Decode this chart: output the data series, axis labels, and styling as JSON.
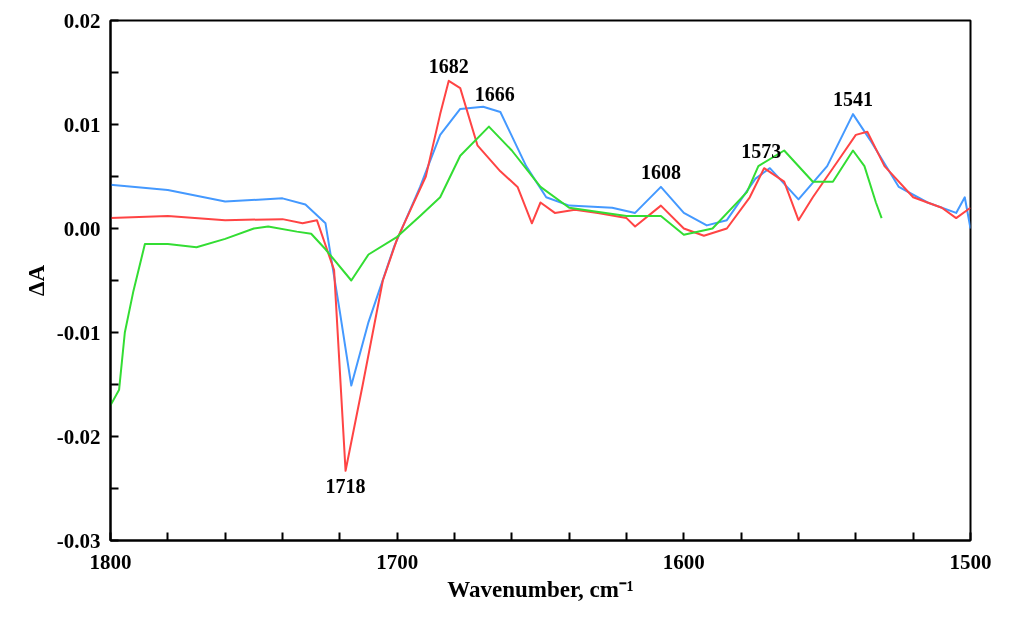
{
  "chart_data": {
    "type": "line",
    "xlabel": "Wavenumber, cm⁻¹",
    "ylabel": "ΔA",
    "xlim": [
      1800,
      1500
    ],
    "ylim": [
      -0.03,
      0.02
    ],
    "xticks": [
      1800,
      {
        "value": 1780,
        "label": null
      },
      {
        "value": 1760,
        "label": null
      },
      {
        "value": 1740,
        "label": null
      },
      {
        "value": 1720,
        "label": null
      },
      1700,
      {
        "value": 1680,
        "label": null
      },
      {
        "value": 1660,
        "label": null
      },
      {
        "value": 1640,
        "label": null
      },
      {
        "value": 1620,
        "label": null
      },
      1600,
      {
        "value": 1580,
        "label": null
      },
      {
        "value": 1560,
        "label": null
      },
      {
        "value": 1540,
        "label": null
      },
      {
        "value": 1520,
        "label": null
      },
      1500
    ],
    "yticks": [
      {
        "value": -0.03,
        "label": "-0.03"
      },
      {
        "value": -0.025,
        "label": null
      },
      {
        "value": -0.02,
        "label": "-0.02"
      },
      {
        "value": -0.015,
        "label": null
      },
      {
        "value": -0.01,
        "label": "-0.01"
      },
      {
        "value": -0.005,
        "label": null
      },
      {
        "value": 0,
        "label": "0.00"
      },
      {
        "value": 0.005,
        "label": null
      },
      {
        "value": 0.01,
        "label": "0.01"
      },
      {
        "value": 0.015,
        "label": null
      },
      {
        "value": 0.02,
        "label": "0.02"
      }
    ],
    "grid": false,
    "marker": "none",
    "line_style": "solid",
    "annotations": [
      {
        "text": "1718",
        "x": 1718,
        "y": -0.0233
      },
      {
        "text": "1682",
        "x": 1682,
        "y": 0.0142
      },
      {
        "text": "1666",
        "x": 1666,
        "y": 0.0115
      },
      {
        "text": "1608",
        "x": 1608,
        "y": 0.004
      },
      {
        "text": "1573",
        "x": 1573,
        "y": 0.006
      },
      {
        "text": "1541",
        "x": 1541,
        "y": 0.011
      }
    ],
    "series": [
      {
        "color": "#4499ff",
        "x": [
          1800,
          1780,
          1760,
          1740,
          1732,
          1725,
          1720,
          1716,
          1710,
          1701,
          1692,
          1685,
          1678,
          1670,
          1664,
          1655,
          1648,
          1640,
          1625,
          1617,
          1608,
          1600,
          1592,
          1585,
          1575,
          1570,
          1560,
          1550,
          1541,
          1535,
          1525,
          1515,
          1505,
          1502,
          1500
        ],
        "values": [
          0.0042,
          0.0037,
          0.0026,
          0.0029,
          0.0023,
          0.0005,
          -0.008,
          -0.0151,
          -0.009,
          -0.0017,
          0.004,
          0.009,
          0.0115,
          0.0117,
          0.0112,
          0.006,
          0.003,
          0.0022,
          0.002,
          0.0015,
          0.004,
          0.0015,
          0.0003,
          0.0008,
          0.0048,
          0.0058,
          0.0028,
          0.006,
          0.011,
          0.0085,
          0.004,
          0.0025,
          0.0015,
          0.003,
          0.0
        ]
      },
      {
        "color": "#ff4444",
        "x": [
          1800,
          1780,
          1760,
          1740,
          1733,
          1728,
          1722,
          1718,
          1712,
          1705,
          1700,
          1695,
          1690,
          1685,
          1682,
          1678,
          1672,
          1664,
          1658,
          1653,
          1650,
          1645,
          1638,
          1630,
          1620,
          1617,
          1608,
          1600,
          1593,
          1585,
          1577,
          1572,
          1565,
          1560,
          1555,
          1545,
          1540,
          1536,
          1530,
          1520,
          1510,
          1505,
          1500
        ],
        "values": [
          0.001,
          0.0012,
          0.0008,
          0.0009,
          0.0005,
          0.0008,
          -0.004,
          -0.0233,
          -0.015,
          -0.005,
          -0.001,
          0.002,
          0.005,
          0.011,
          0.0142,
          0.0135,
          0.008,
          0.0055,
          0.004,
          0.0005,
          0.0025,
          0.0015,
          0.0018,
          0.0015,
          0.001,
          0.0002,
          0.0022,
          0.0,
          -0.0007,
          0.0,
          0.003,
          0.0058,
          0.0045,
          0.0008,
          0.003,
          0.007,
          0.009,
          0.0093,
          0.006,
          0.003,
          0.002,
          0.001,
          0.002
        ]
      },
      {
        "color": "#33dd33",
        "x": [
          1800,
          1797,
          1795,
          1792,
          1788,
          1780,
          1770,
          1760,
          1750,
          1745,
          1735,
          1730,
          1725,
          1716,
          1710,
          1700,
          1692,
          1685,
          1678,
          1668,
          1660,
          1650,
          1640,
          1620,
          1608,
          1600,
          1590,
          1578,
          1574,
          1565,
          1555,
          1548,
          1541,
          1537,
          1533,
          1531
        ],
        "values": [
          -0.017,
          -0.0155,
          -0.01,
          -0.006,
          -0.0015,
          -0.0015,
          -0.0018,
          -0.001,
          0.0,
          0.0002,
          -0.0003,
          -0.0005,
          -0.002,
          -0.005,
          -0.0025,
          -0.0008,
          0.0012,
          0.003,
          0.007,
          0.0098,
          0.0075,
          0.004,
          0.002,
          0.0012,
          0.0012,
          -0.0006,
          0.0,
          0.0035,
          0.006,
          0.0075,
          0.0045,
          0.0045,
          0.0075,
          0.006,
          0.0025,
          0.001
        ]
      }
    ]
  }
}
